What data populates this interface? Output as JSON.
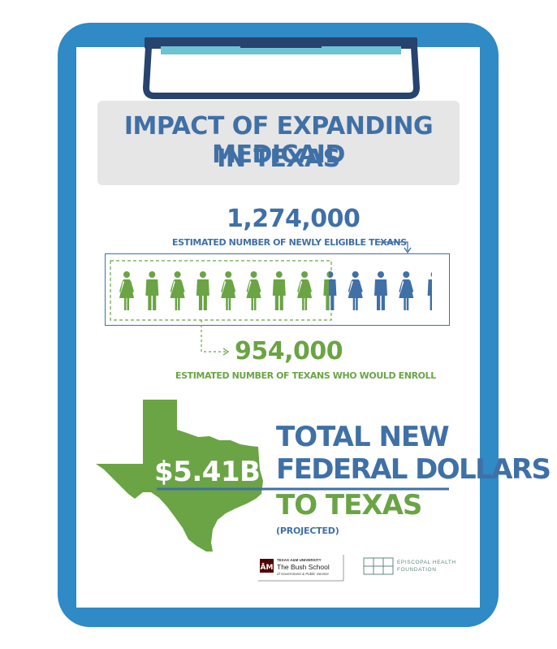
{
  "title": {
    "line1": "IMPACT OF EXPANDING MEDICAID",
    "line2": "IN TEXAS"
  },
  "eligible": {
    "number": "1,274,000",
    "label": "ESTIMATED NUMBER OF NEWLY ELIGIBLE TEXANS"
  },
  "enroll": {
    "number": "954,000",
    "label": "ESTIMATED NUMBER OF TEXANS WHO WOULD ENROLL"
  },
  "federal": {
    "amount": "$5.41B",
    "line1": "TOTAL NEW",
    "line2": "FEDERAL DOLLARS",
    "line3": "TO TEXAS",
    "note": "(PROJECTED)"
  },
  "people_icons": {
    "sequence": [
      "female",
      "male",
      "female",
      "male",
      "female",
      "female",
      "male",
      "female",
      "male-split",
      "female",
      "male",
      "female",
      "partial"
    ],
    "enrolled_fraction": 0.749
  },
  "logos": {
    "tamu_top": "TEXAS A&M UNIVERSITY",
    "bush_name": "The Bush School",
    "bush_sub": "of Government & Public Service",
    "ehf_line1": "EPISCOPAL HEALTH",
    "ehf_line2": "FOUNDATION"
  },
  "colors": {
    "board_blue": "#2f8ac6",
    "navy": "#27436e",
    "title_blue": "#3f70a6",
    "green": "#6aa444",
    "gray_box": "#e6e6e7",
    "clip_teal": "#6cc3d3",
    "tamu_maroon": "#500000"
  }
}
